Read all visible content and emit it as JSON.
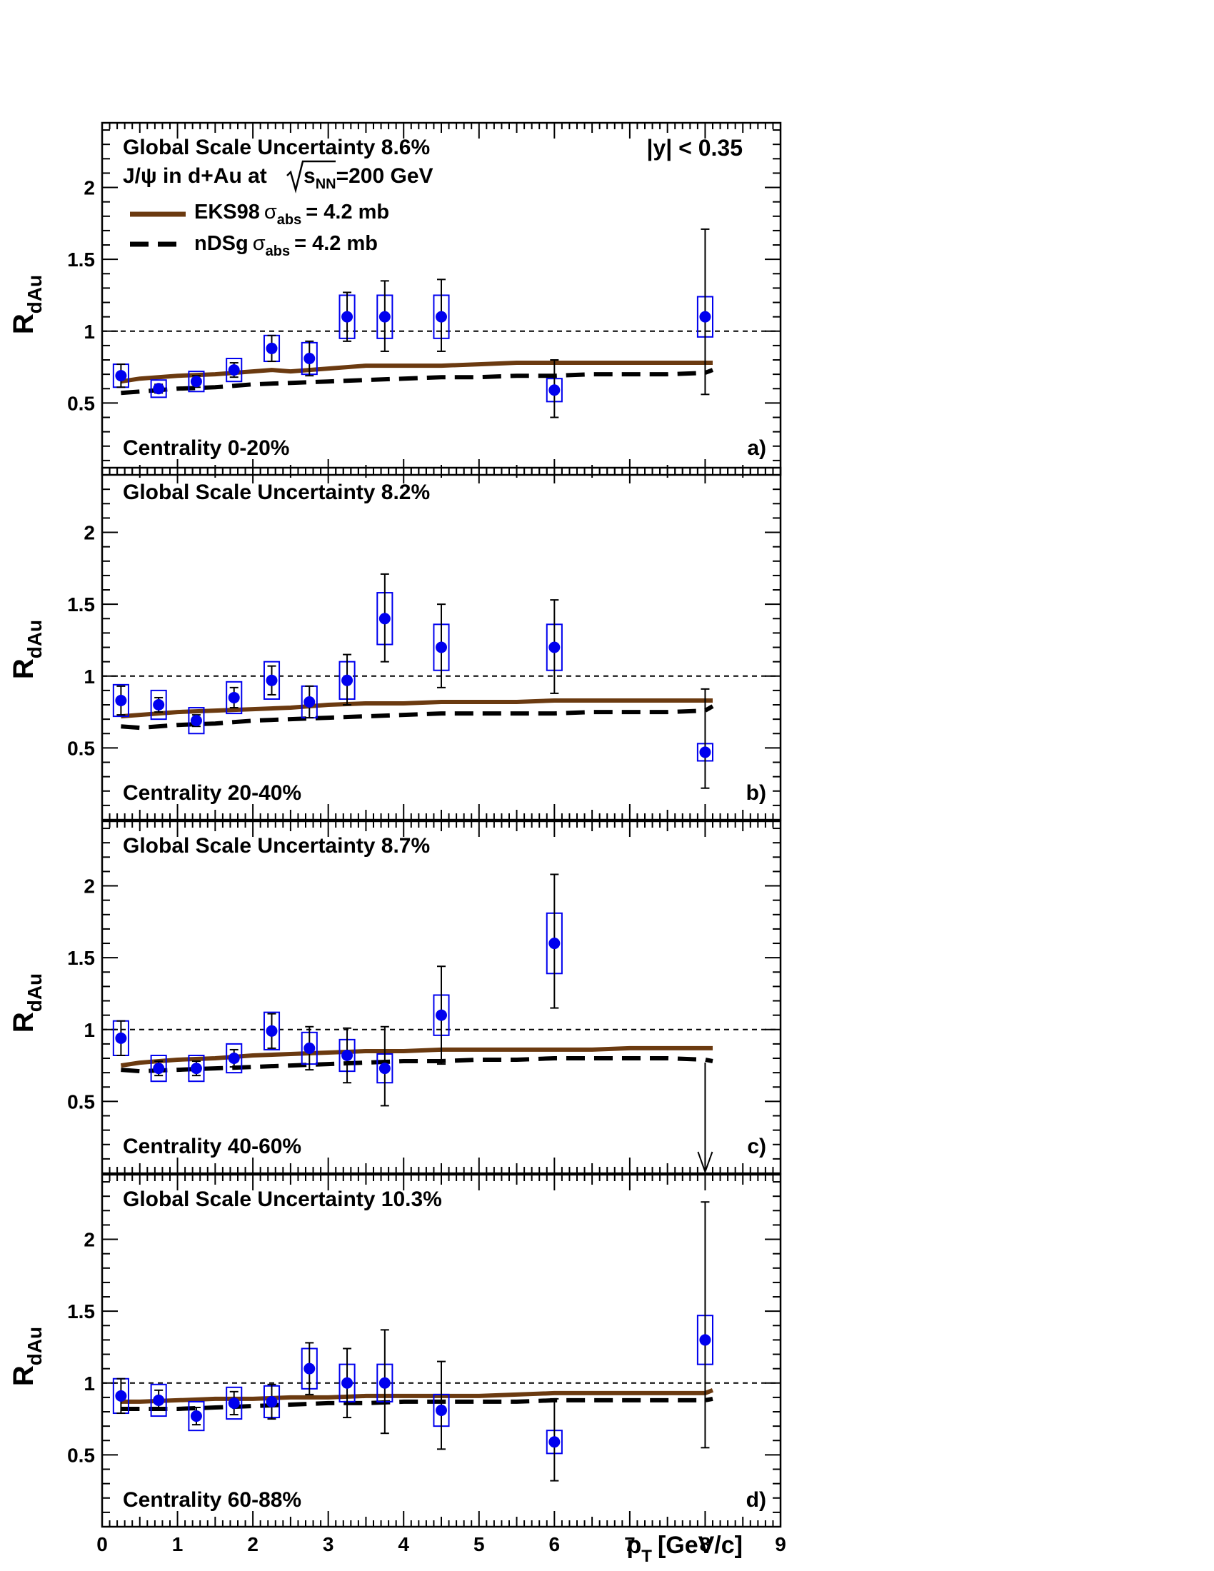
{
  "figure": {
    "ylabel_main": "R",
    "ylabel_sub": "dAu",
    "xlabel_main": "p",
    "xlabel_sub": "T",
    "xlabel_units": "[GeV/c]",
    "rapidity_label": "|y| < 0.35",
    "system_prefix": "J/ψ in d+Au at",
    "system_s": "s",
    "system_sub": "NN",
    "system_suffix": "=200 GeV",
    "x_ticks": [
      "0",
      "1",
      "2",
      "3",
      "4",
      "5",
      "6",
      "7",
      "8",
      "9"
    ],
    "y_ticks": [
      "0.5",
      "1",
      "1.5",
      "2"
    ],
    "legend": [
      {
        "name": "EKS98",
        "sigma": "σ",
        "sub": "abs",
        "value": "= 4.2 mb",
        "color": "#6b3a10",
        "style": "solid"
      },
      {
        "name": "nDSg",
        "sigma": "σ",
        "sub": "abs",
        "value": "= 4.2 mb",
        "color": "#000000",
        "style": "dashed"
      }
    ],
    "colors": {
      "marker": "#0000ee",
      "box": "#0000ee",
      "errorbar": "#000000",
      "eks98": "#6b3a10",
      "ndsg": "#000000",
      "reference": "#000000"
    }
  },
  "chart_data": [
    {
      "type": "scatter",
      "panel_label": "a)",
      "centrality": "Centrality 0-20%",
      "scale_uncertainty": "Global Scale Uncertainty 8.6%",
      "xlim": [
        0,
        9
      ],
      "ylim": [
        0,
        2.45
      ],
      "reference_line": 1.0,
      "points": [
        {
          "x": 0.25,
          "y": 0.69,
          "err_lo": 0.08,
          "err_hi": 0.08,
          "sys": 0.08
        },
        {
          "x": 0.75,
          "y": 0.6,
          "err_lo": 0.03,
          "err_hi": 0.03,
          "sys": 0.06
        },
        {
          "x": 1.25,
          "y": 0.65,
          "err_lo": 0.04,
          "err_hi": 0.04,
          "sys": 0.07
        },
        {
          "x": 1.75,
          "y": 0.73,
          "err_lo": 0.05,
          "err_hi": 0.05,
          "sys": 0.08
        },
        {
          "x": 2.25,
          "y": 0.88,
          "err_lo": 0.09,
          "err_hi": 0.09,
          "sys": 0.09
        },
        {
          "x": 2.75,
          "y": 0.81,
          "err_lo": 0.12,
          "err_hi": 0.12,
          "sys": 0.11
        },
        {
          "x": 3.25,
          "y": 1.1,
          "err_lo": 0.17,
          "err_hi": 0.17,
          "sys": 0.15
        },
        {
          "x": 3.75,
          "y": 1.1,
          "err_lo": 0.24,
          "err_hi": 0.25,
          "sys": 0.15
        },
        {
          "x": 4.5,
          "y": 1.1,
          "err_lo": 0.24,
          "err_hi": 0.26,
          "sys": 0.15
        },
        {
          "x": 6.0,
          "y": 0.59,
          "err_lo": 0.19,
          "err_hi": 0.21,
          "sys": 0.08
        },
        {
          "x": 8.0,
          "y": 1.1,
          "err_lo": 0.54,
          "err_hi": 0.61,
          "sys": 0.14
        }
      ],
      "series": [
        {
          "name": "EKS98",
          "x": [
            0.25,
            0.5,
            1.0,
            1.5,
            2.0,
            2.25,
            2.5,
            3.0,
            3.5,
            4.0,
            4.5,
            5.0,
            5.5,
            6.0,
            6.5,
            7.0,
            7.5,
            8.0,
            8.1
          ],
          "values": [
            0.65,
            0.67,
            0.69,
            0.7,
            0.72,
            0.73,
            0.72,
            0.74,
            0.76,
            0.76,
            0.76,
            0.77,
            0.78,
            0.78,
            0.78,
            0.78,
            0.78,
            0.78,
            0.78
          ]
        },
        {
          "name": "nDSg",
          "x": [
            0.25,
            0.5,
            1.0,
            1.5,
            2.0,
            2.5,
            3.0,
            3.5,
            4.0,
            4.5,
            5.0,
            5.5,
            6.0,
            6.5,
            7.0,
            7.5,
            8.0,
            8.1
          ],
          "values": [
            0.57,
            0.58,
            0.6,
            0.61,
            0.63,
            0.64,
            0.65,
            0.66,
            0.67,
            0.68,
            0.68,
            0.69,
            0.69,
            0.7,
            0.7,
            0.7,
            0.71,
            0.73
          ]
        }
      ]
    },
    {
      "type": "scatter",
      "panel_label": "b)",
      "centrality": "Centrality 20-40%",
      "scale_uncertainty": "Global Scale Uncertainty 8.2%",
      "xlim": [
        0,
        9
      ],
      "ylim": [
        0,
        2.45
      ],
      "reference_line": 1.0,
      "points": [
        {
          "x": 0.25,
          "y": 0.83,
          "err_lo": 0.1,
          "err_hi": 0.1,
          "sys": 0.11
        },
        {
          "x": 0.75,
          "y": 0.8,
          "err_lo": 0.05,
          "err_hi": 0.05,
          "sys": 0.1
        },
        {
          "x": 1.25,
          "y": 0.69,
          "err_lo": 0.04,
          "err_hi": 0.04,
          "sys": 0.09
        },
        {
          "x": 1.75,
          "y": 0.85,
          "err_lo": 0.07,
          "err_hi": 0.07,
          "sys": 0.11
        },
        {
          "x": 2.25,
          "y": 0.97,
          "err_lo": 0.1,
          "err_hi": 0.1,
          "sys": 0.13
        },
        {
          "x": 2.75,
          "y": 0.82,
          "err_lo": 0.11,
          "err_hi": 0.11,
          "sys": 0.11
        },
        {
          "x": 3.25,
          "y": 0.97,
          "err_lo": 0.17,
          "err_hi": 0.18,
          "sys": 0.13
        },
        {
          "x": 3.75,
          "y": 1.4,
          "err_lo": 0.3,
          "err_hi": 0.31,
          "sys": 0.18
        },
        {
          "x": 4.5,
          "y": 1.2,
          "err_lo": 0.28,
          "err_hi": 0.3,
          "sys": 0.16
        },
        {
          "x": 6.0,
          "y": 1.2,
          "err_lo": 0.32,
          "err_hi": 0.33,
          "sys": 0.16
        },
        {
          "x": 8.0,
          "y": 0.47,
          "err_lo": 0.25,
          "err_hi": 0.44,
          "sys": 0.06
        }
      ],
      "series": [
        {
          "name": "EKS98",
          "x": [
            0.25,
            0.5,
            1.0,
            1.5,
            2.0,
            2.5,
            3.0,
            3.5,
            4.0,
            4.5,
            5.0,
            5.5,
            6.0,
            6.5,
            7.0,
            7.5,
            8.0,
            8.1
          ],
          "values": [
            0.72,
            0.73,
            0.75,
            0.76,
            0.77,
            0.78,
            0.8,
            0.81,
            0.81,
            0.82,
            0.82,
            0.82,
            0.83,
            0.83,
            0.83,
            0.83,
            0.83,
            0.83
          ]
        },
        {
          "name": "nDSg",
          "x": [
            0.25,
            0.5,
            1.0,
            1.5,
            2.0,
            2.5,
            3.0,
            3.5,
            4.0,
            4.5,
            5.0,
            5.5,
            6.0,
            6.5,
            7.0,
            7.5,
            8.0,
            8.1
          ],
          "values": [
            0.65,
            0.64,
            0.66,
            0.67,
            0.69,
            0.7,
            0.71,
            0.72,
            0.73,
            0.74,
            0.74,
            0.74,
            0.74,
            0.75,
            0.75,
            0.75,
            0.76,
            0.79
          ]
        }
      ]
    },
    {
      "type": "scatter",
      "panel_label": "c)",
      "centrality": "Centrality 40-60%",
      "scale_uncertainty": "Global Scale Uncertainty 8.7%",
      "xlim": [
        0,
        9
      ],
      "ylim": [
        0,
        2.45
      ],
      "reference_line": 1.0,
      "points": [
        {
          "x": 0.25,
          "y": 0.94,
          "err_lo": 0.12,
          "err_hi": 0.12,
          "sys": 0.12
        },
        {
          "x": 0.75,
          "y": 0.73,
          "err_lo": 0.05,
          "err_hi": 0.05,
          "sys": 0.09
        },
        {
          "x": 1.25,
          "y": 0.73,
          "err_lo": 0.05,
          "err_hi": 0.05,
          "sys": 0.09
        },
        {
          "x": 1.75,
          "y": 0.8,
          "err_lo": 0.06,
          "err_hi": 0.06,
          "sys": 0.1
        },
        {
          "x": 2.25,
          "y": 0.99,
          "err_lo": 0.12,
          "err_hi": 0.12,
          "sys": 0.13
        },
        {
          "x": 2.75,
          "y": 0.87,
          "err_lo": 0.15,
          "err_hi": 0.15,
          "sys": 0.11
        },
        {
          "x": 3.25,
          "y": 0.82,
          "err_lo": 0.19,
          "err_hi": 0.19,
          "sys": 0.11
        },
        {
          "x": 3.75,
          "y": 0.73,
          "err_lo": 0.26,
          "err_hi": 0.29,
          "sys": 0.1
        },
        {
          "x": 4.5,
          "y": 1.1,
          "err_lo": 0.34,
          "err_hi": 0.34,
          "sys": 0.14
        },
        {
          "x": 6.0,
          "y": 1.6,
          "err_lo": 0.45,
          "err_hi": 0.48,
          "sys": 0.21
        }
      ],
      "upper_limits": [
        {
          "x": 8.0,
          "y_top": 0.77,
          "y_bottom": 0.0
        }
      ],
      "series": [
        {
          "name": "EKS98",
          "x": [
            0.25,
            0.5,
            1.0,
            1.5,
            2.0,
            2.5,
            3.0,
            3.5,
            4.0,
            4.5,
            5.0,
            5.5,
            6.0,
            6.5,
            7.0,
            7.5,
            8.0,
            8.1
          ],
          "values": [
            0.75,
            0.77,
            0.79,
            0.8,
            0.82,
            0.83,
            0.84,
            0.85,
            0.85,
            0.86,
            0.86,
            0.86,
            0.86,
            0.86,
            0.87,
            0.87,
            0.87,
            0.87
          ]
        },
        {
          "name": "nDSg",
          "x": [
            0.25,
            0.5,
            1.0,
            1.5,
            2.0,
            2.5,
            3.0,
            3.5,
            4.0,
            4.5,
            5.0,
            5.5,
            6.0,
            6.5,
            7.0,
            7.5,
            8.0,
            8.1
          ],
          "values": [
            0.72,
            0.71,
            0.72,
            0.73,
            0.74,
            0.75,
            0.76,
            0.77,
            0.78,
            0.78,
            0.79,
            0.79,
            0.8,
            0.8,
            0.8,
            0.8,
            0.79,
            0.78
          ]
        }
      ]
    },
    {
      "type": "scatter",
      "panel_label": "d)",
      "centrality": "Centrality 60-88%",
      "scale_uncertainty": "Global Scale Uncertainty 10.3%",
      "xlim": [
        0,
        9
      ],
      "ylim": [
        0,
        2.45
      ],
      "reference_line": 1.0,
      "points": [
        {
          "x": 0.25,
          "y": 0.91,
          "err_lo": 0.12,
          "err_hi": 0.12,
          "sys": 0.12
        },
        {
          "x": 0.75,
          "y": 0.88,
          "err_lo": 0.07,
          "err_hi": 0.07,
          "sys": 0.11
        },
        {
          "x": 1.25,
          "y": 0.77,
          "err_lo": 0.06,
          "err_hi": 0.06,
          "sys": 0.1
        },
        {
          "x": 1.75,
          "y": 0.86,
          "err_lo": 0.08,
          "err_hi": 0.08,
          "sys": 0.11
        },
        {
          "x": 2.25,
          "y": 0.87,
          "err_lo": 0.12,
          "err_hi": 0.12,
          "sys": 0.11
        },
        {
          "x": 2.75,
          "y": 1.1,
          "err_lo": 0.18,
          "err_hi": 0.18,
          "sys": 0.14
        },
        {
          "x": 3.25,
          "y": 1.0,
          "err_lo": 0.24,
          "err_hi": 0.24,
          "sys": 0.13
        },
        {
          "x": 3.75,
          "y": 1.0,
          "err_lo": 0.35,
          "err_hi": 0.37,
          "sys": 0.13
        },
        {
          "x": 4.5,
          "y": 0.81,
          "err_lo": 0.27,
          "err_hi": 0.34,
          "sys": 0.11
        },
        {
          "x": 6.0,
          "y": 0.59,
          "err_lo": 0.27,
          "err_hi": 0.3,
          "sys": 0.08
        },
        {
          "x": 8.0,
          "y": 1.3,
          "err_lo": 0.75,
          "err_hi": 0.96,
          "sys": 0.17
        }
      ],
      "series": [
        {
          "name": "EKS98",
          "x": [
            0.25,
            0.5,
            1.0,
            1.5,
            2.0,
            2.5,
            3.0,
            3.5,
            4.0,
            4.5,
            5.0,
            5.5,
            6.0,
            6.5,
            7.0,
            7.5,
            8.0,
            8.1
          ],
          "values": [
            0.87,
            0.87,
            0.88,
            0.89,
            0.89,
            0.9,
            0.9,
            0.91,
            0.91,
            0.91,
            0.91,
            0.92,
            0.93,
            0.93,
            0.93,
            0.93,
            0.93,
            0.95
          ]
        },
        {
          "name": "nDSg",
          "x": [
            0.25,
            0.5,
            1.0,
            1.5,
            2.0,
            2.5,
            3.0,
            3.5,
            4.0,
            4.5,
            5.0,
            5.5,
            6.0,
            6.5,
            7.0,
            7.5,
            8.0,
            8.1
          ],
          "values": [
            0.82,
            0.82,
            0.82,
            0.83,
            0.84,
            0.85,
            0.86,
            0.86,
            0.87,
            0.87,
            0.87,
            0.87,
            0.88,
            0.88,
            0.88,
            0.88,
            0.88,
            0.89
          ]
        }
      ]
    }
  ]
}
